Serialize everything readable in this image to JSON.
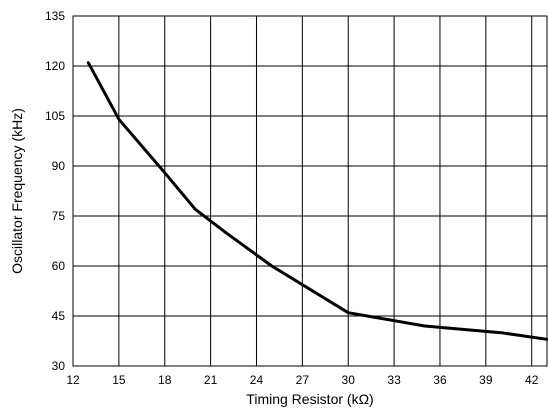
{
  "chart_data": {
    "type": "line",
    "title": "",
    "xlabel": "Timing Resistor (kΩ)",
    "ylabel": "Oscillator Frequency (kHz)",
    "xlim": [
      12,
      43
    ],
    "ylim": [
      30,
      135
    ],
    "x_ticks": [
      12,
      15,
      18,
      21,
      24,
      27,
      30,
      33,
      36,
      39,
      42
    ],
    "y_ticks": [
      30,
      45,
      60,
      75,
      90,
      105,
      120,
      135
    ],
    "grid": true,
    "legend": "none",
    "series": [
      {
        "color": "#000000",
        "x": [
          13,
          15,
          18,
          20,
          22,
          25,
          30,
          35,
          40,
          43
        ],
        "y": [
          121,
          104,
          88,
          77,
          70,
          60,
          46,
          42,
          40,
          38
        ]
      }
    ]
  }
}
